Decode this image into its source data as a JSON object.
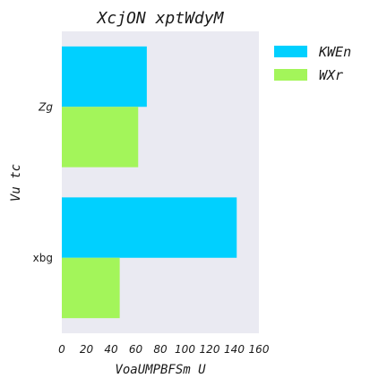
{
  "chart_data": {
    "type": "bar",
    "orientation": "horizontal",
    "title": "XcjON xptWdyM",
    "xlabel": "VoaUMPBFSm U",
    "ylabel": "Vu tc",
    "categories": [
      "Zg",
      "xbg"
    ],
    "category_italic": [
      true,
      false
    ],
    "series": [
      {
        "name": "KWEn",
        "color": "#00d0ff",
        "values": [
          69,
          142
        ]
      },
      {
        "name": "WXr",
        "color": "#a3f55a",
        "values": [
          62,
          47
        ]
      }
    ],
    "xlim": [
      0,
      160
    ],
    "xticks": [
      0,
      20,
      40,
      60,
      80,
      100,
      120,
      140,
      160
    ],
    "grid": false,
    "plot_background": "#eaeaf2",
    "legend_position": "outside-top-right"
  }
}
